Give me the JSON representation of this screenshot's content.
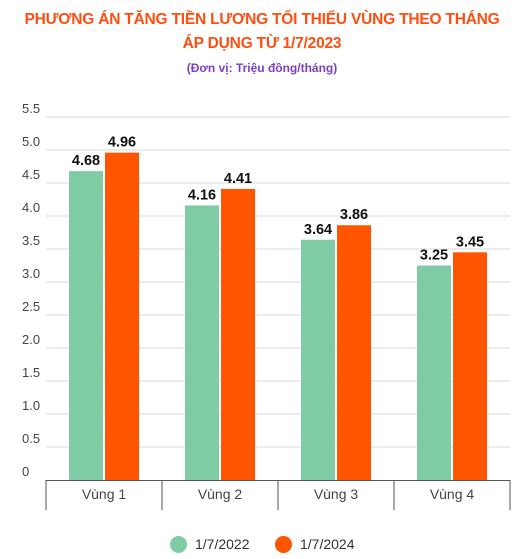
{
  "title_line1": "PHƯƠNG ÁN TĂNG TIỀN LƯƠNG TỐI THIỂU VÙNG THEO THÁNG",
  "title_line2": "ÁP DỤNG TỪ 1/7/2023",
  "subtitle": "(Đơn vị: Triệu đồng/tháng)",
  "colors": {
    "title": "#ff4e0f",
    "subtitle": "#7b3fbf",
    "series_2022": "#7fcba6",
    "series_2024": "#ff5500",
    "axis_text": "#444444",
    "value_text": "#111111",
    "gridline": "#d9d9d9",
    "axis_line": "#555555"
  },
  "chart_data": {
    "type": "bar",
    "categories": [
      "Vùng 1",
      "Vùng 2",
      "Vùng 3",
      "Vùng 4"
    ],
    "series": [
      {
        "name": "1/7/2022",
        "values": [
          4.68,
          4.16,
          3.64,
          3.25
        ]
      },
      {
        "name": "1/7/2024",
        "values": [
          4.96,
          4.41,
          3.86,
          3.45
        ]
      }
    ],
    "value_labels": [
      [
        "4.68",
        "4.16",
        "3.64",
        "3.25"
      ],
      [
        "4.96",
        "4.41",
        "3.86",
        "3.45"
      ]
    ],
    "y_ticks": [
      "0",
      "0.5",
      "1.0",
      "1.5",
      "2.0",
      "2.5",
      "3.0",
      "3.5",
      "4.0",
      "4.5",
      "5.0",
      "5.5"
    ],
    "ylim": [
      0,
      5.5
    ],
    "xlabel": "",
    "ylabel": "",
    "grid": true,
    "legend_position": "bottom"
  }
}
